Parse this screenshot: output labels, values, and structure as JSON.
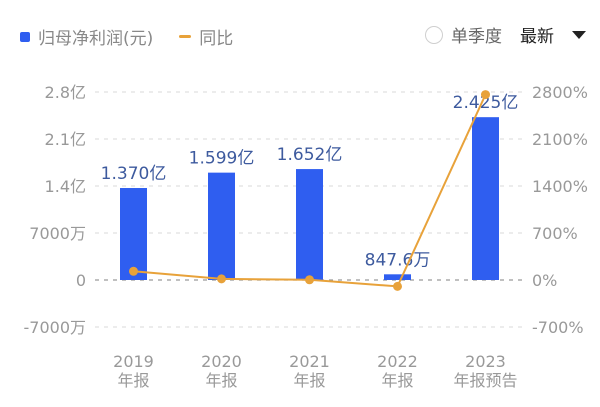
{
  "legend": {
    "bar_label": "归母净利润(元)",
    "line_label": "同比"
  },
  "controls": {
    "quarter_toggle_label": "单季度",
    "sort_select_value": "最新"
  },
  "colors": {
    "bar": "#2f5ef0",
    "line": "#e8a23a",
    "value_label": "#3d5a9e",
    "axis_text": "#999999",
    "grid": "#d9d9d9"
  },
  "axes": {
    "left_ticks": [
      "2.8亿",
      "2.1亿",
      "1.4亿",
      "7000万",
      "0",
      "-7000万"
    ],
    "right_ticks": [
      "2800%",
      "2100%",
      "1400%",
      "700%",
      "0%",
      "-700%"
    ],
    "x_categories": [
      {
        "year": "2019",
        "type": "年报"
      },
      {
        "year": "2020",
        "type": "年报"
      },
      {
        "year": "2021",
        "type": "年报"
      },
      {
        "year": "2022",
        "type": "年报"
      },
      {
        "year": "2023",
        "type": "年报预告"
      }
    ]
  },
  "bar_labels": [
    "1.370亿",
    "1.599亿",
    "1.652亿",
    "847.6万",
    "2.425亿"
  ],
  "chart_data": {
    "type": "bar",
    "title": "",
    "categories": [
      "2019年报",
      "2020年报",
      "2021年报",
      "2022年报",
      "2023年报预告"
    ],
    "series": [
      {
        "name": "归母净利润(元)",
        "type": "bar",
        "axis": "left",
        "values": [
          137000000,
          159900000,
          165200000,
          8476000,
          242500000
        ],
        "labels": [
          "1.370亿",
          "1.599亿",
          "1.652亿",
          "847.6万",
          "2.425亿"
        ]
      },
      {
        "name": "同比",
        "type": "line",
        "axis": "right",
        "unit": "%",
        "values": [
          130,
          16.7,
          3.3,
          -94.9,
          2761
        ]
      }
    ],
    "xlabel": "",
    "ylabel_left": "",
    "ylabel_right": "",
    "ylim_left": [
      -70000000,
      280000000
    ],
    "ylim_right": [
      -700,
      2800
    ],
    "grid": true,
    "legend_position": "top-left"
  }
}
